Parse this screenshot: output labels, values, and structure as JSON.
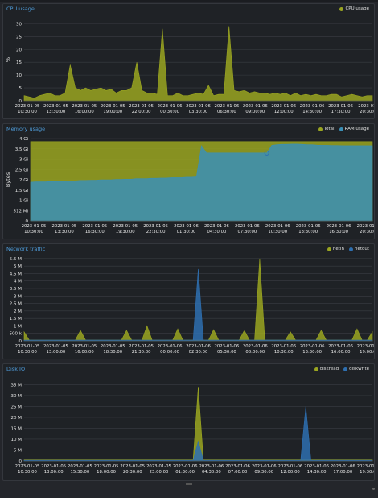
{
  "charts": [
    {
      "id": "cpu",
      "title": "CPU usage",
      "legend": [
        {
          "label": "CPU usage",
          "color": "#9aa521"
        }
      ],
      "ylabel": "%",
      "yticks": [
        "0",
        "5",
        "10",
        "15",
        "20",
        "25",
        "30"
      ],
      "xticks": [
        [
          "2023-01-05",
          "10:30:00"
        ],
        [
          "2023-01-05",
          "13:30:00"
        ],
        [
          "2023-01-05",
          "16:00:00"
        ],
        [
          "2023-01-05",
          "19:00:00"
        ],
        [
          "2023-01-05",
          "22:00:00"
        ],
        [
          "2023-01-06",
          "00:30:00"
        ],
        [
          "2023-01-06",
          "03:30:00"
        ],
        [
          "2023-01-06",
          "06:30:00"
        ],
        [
          "2023-01-06",
          "09:00:00"
        ],
        [
          "2023-01-06",
          "12:00:00"
        ],
        [
          "2023-01-06",
          "14:30:00"
        ],
        [
          "2023-01-06",
          "17:30:00"
        ],
        [
          "2023-01-0",
          "20:30:00"
        ]
      ]
    },
    {
      "id": "memory",
      "title": "Memory usage",
      "legend": [
        {
          "label": "Total",
          "color": "#9aa521"
        },
        {
          "label": "RAM usage",
          "color": "#3b8fb6"
        }
      ],
      "ylabel": "Bytes",
      "yticks": [
        "0",
        "512 Mi",
        "1 Gi",
        "1.5 Gi",
        "2 Gi",
        "2.5 Gi",
        "3 Gi",
        "3.5 Gi",
        "4 Gi"
      ],
      "xticks": [
        [
          "2023-01-05",
          "10:30:00"
        ],
        [
          "2023-01-05",
          "13:30:00"
        ],
        [
          "2023-01-05",
          "16:30:00"
        ],
        [
          "2023-01-05",
          "19:30:00"
        ],
        [
          "2023-01-05",
          "22:30:00"
        ],
        [
          "2023-01-06",
          "01:30:00"
        ],
        [
          "2023-01-06",
          "04:30:00"
        ],
        [
          "2023-01-06",
          "07:30:00"
        ],
        [
          "2023-01-06",
          "10:30:00"
        ],
        [
          "2023-01-06",
          "13:30:00"
        ],
        [
          "2023-01-06",
          "16:30:00"
        ],
        [
          "2023-01-06",
          "20:30:00"
        ]
      ]
    },
    {
      "id": "network",
      "title": "Network traffic",
      "legend": [
        {
          "label": "netin",
          "color": "#9aa521"
        },
        {
          "label": "netout",
          "color": "#2e6fb0"
        }
      ],
      "ylabel": "",
      "yticks": [
        "0",
        "500 k",
        "1 M",
        "1.5 M",
        "2 M",
        "2.5 M",
        "3 M",
        "3.5 M",
        "4 M",
        "4.5 M",
        "5 M",
        "5.5 M"
      ],
      "xticks": [
        [
          "2023-01-05",
          "10:30:00"
        ],
        [
          "2023-01-05",
          "13:00:00"
        ],
        [
          "2023-01-05",
          "16:00:00"
        ],
        [
          "2023-01-05",
          "18:30:00"
        ],
        [
          "2023-01-05",
          "21:30:00"
        ],
        [
          "2023-01-06",
          "00:00:00"
        ],
        [
          "2023-01-06",
          "02:30:00"
        ],
        [
          "2023-01-06",
          "05:30:00"
        ],
        [
          "2023-01-06",
          "08:00:00"
        ],
        [
          "2023-01-06",
          "10:30:00"
        ],
        [
          "2023-01-06",
          "13:30:00"
        ],
        [
          "2023-01-06",
          "16:00:00"
        ],
        [
          "2023-01-06",
          "19:00:00"
        ]
      ]
    },
    {
      "id": "disk",
      "title": "Disk IO",
      "legend": [
        {
          "label": "diskread",
          "color": "#9aa521"
        },
        {
          "label": "diskwrite",
          "color": "#2e6fb0"
        }
      ],
      "ylabel": "",
      "yticks": [
        "0",
        "5 M",
        "10 M",
        "15 M",
        "20 M",
        "25 M",
        "30 M",
        "35 M"
      ],
      "xticks": [
        [
          "2023-01-05",
          "10:30:00"
        ],
        [
          "2023-01-05",
          "13:00:00"
        ],
        [
          "2023-01-05",
          "15:30:00"
        ],
        [
          "2023-01-05",
          "18:00:00"
        ],
        [
          "2023-01-05",
          "20:30:00"
        ],
        [
          "2023-01-05",
          "23:00:00"
        ],
        [
          "2023-01-06",
          "01:30:00"
        ],
        [
          "2023-01-06",
          "04:30:00"
        ],
        [
          "2023-01-06",
          "07:00:00"
        ],
        [
          "2023-01-06",
          "09:30:00"
        ],
        [
          "2023-01-06",
          "12:00:00"
        ],
        [
          "2023-01-06",
          "14:30:00"
        ],
        [
          "2023-01-06",
          "17:00:00"
        ],
        [
          "2023-01-06",
          "19:30:00"
        ]
      ]
    }
  ],
  "chart_data": [
    {
      "type": "area",
      "title": "CPU usage",
      "ylabel": "%",
      "ylim": [
        0,
        32
      ],
      "grid": true,
      "legend_position": "top-right",
      "series": [
        {
          "name": "CPU usage",
          "color": "#9aa521",
          "values": [
            2,
            1.5,
            1,
            2,
            2.5,
            3,
            2,
            2,
            3,
            14,
            5,
            4,
            5,
            4,
            4.5,
            5,
            4,
            4.5,
            3,
            4,
            4,
            5,
            15,
            4,
            3,
            3,
            2.5,
            28,
            2,
            2,
            3,
            2,
            2,
            2.5,
            3,
            2.5,
            6,
            2,
            2.5,
            2.5,
            29,
            4,
            3.5,
            4,
            3,
            3.5,
            3,
            3,
            2.5,
            3,
            2.5,
            3,
            2,
            3,
            2,
            2.5,
            2,
            2.5,
            2,
            2,
            2.5,
            2.5,
            1.5,
            2,
            2.5,
            2,
            1.5,
            2,
            2
          ]
        }
      ]
    },
    {
      "type": "area",
      "title": "Memory usage",
      "ylabel": "Bytes",
      "ylim": [
        0,
        4
      ],
      "unit": "Gi",
      "grid": true,
      "legend_position": "top-right",
      "series": [
        {
          "name": "Total",
          "color": "#9aa521",
          "values": [
            3.85,
            3.85,
            3.85,
            3.85,
            3.85,
            3.85,
            3.85,
            3.85,
            3.85,
            3.85,
            3.85,
            3.85,
            3.85,
            3.85,
            3.85,
            3.85,
            3.85,
            3.85,
            3.85,
            3.85,
            3.85,
            3.85,
            3.85,
            3.85,
            3.85,
            3.85,
            3.85,
            3.85,
            3.85,
            3.85,
            3.85,
            3.85,
            3.85,
            3.85,
            3.85,
            3.85,
            3.85,
            3.85,
            3.85,
            3.85,
            3.85,
            3.85,
            3.85,
            3.85,
            3.85,
            3.85,
            3.85,
            3.85,
            3.85,
            3.85,
            3.85,
            3.85,
            3.85,
            3.85,
            3.85,
            3.85,
            3.85,
            3.85,
            3.85,
            3.85,
            3.85,
            3.85,
            3.85,
            3.85,
            3.85,
            3.85,
            3.85,
            3.85,
            3.85
          ]
        },
        {
          "name": "RAM usage",
          "color": "#3b8fb6",
          "values": [
            1.88,
            1.9,
            1.9,
            1.9,
            1.92,
            1.92,
            1.93,
            1.93,
            1.95,
            1.95,
            1.97,
            1.97,
            1.98,
            1.98,
            2.0,
            2.0,
            2.0,
            2.02,
            2.02,
            2.03,
            2.03,
            2.05,
            2.05,
            2.05,
            2.07,
            2.07,
            2.08,
            2.08,
            2.1,
            2.1,
            2.1,
            2.12,
            2.12,
            2.14,
            3.65,
            3.3,
            3.3,
            3.3,
            3.3,
            3.3,
            3.3,
            3.3,
            3.3,
            3.3,
            3.3,
            3.3,
            3.3,
            3.3,
            3.67,
            3.7,
            3.72,
            3.72,
            3.73,
            3.73,
            3.72,
            3.7,
            3.7,
            3.68,
            3.67,
            3.67,
            3.66,
            3.66,
            3.65,
            3.65,
            3.65,
            3.65,
            3.65,
            3.65,
            3.65
          ]
        }
      ]
    },
    {
      "type": "area",
      "title": "Network traffic",
      "ylim": [
        0,
        5.6
      ],
      "unit": "M",
      "grid": true,
      "legend_position": "top-right",
      "series": [
        {
          "name": "netin",
          "color": "#9aa521",
          "values": [
            0.6,
            0.05,
            0.05,
            0.05,
            0.05,
            0.05,
            0.05,
            0.05,
            0.05,
            0.05,
            0.05,
            0.7,
            0.05,
            0.05,
            0.05,
            0.05,
            0.05,
            0.05,
            0.05,
            0.05,
            0.7,
            0.05,
            0.05,
            0.05,
            1.0,
            0.05,
            0.05,
            0.05,
            0.05,
            0.05,
            0.8,
            0.05,
            0.05,
            0.05,
            0.05,
            0.05,
            0.05,
            0.75,
            0.05,
            0.05,
            0.05,
            0.05,
            0.05,
            0.7,
            0.05,
            0.05,
            5.5,
            0.05,
            0.05,
            0.05,
            0.05,
            0.05,
            0.6,
            0.05,
            0.05,
            0.05,
            0.05,
            0.05,
            0.7,
            0.05,
            0.05,
            0.05,
            0.05,
            0.05,
            0.05,
            0.8,
            0.05,
            0.05,
            0.6
          ]
        },
        {
          "name": "netout",
          "color": "#2e6fb0",
          "values": [
            0.05,
            0.05,
            0.05,
            0.05,
            0.05,
            0.05,
            0.05,
            0.05,
            0.05,
            0.05,
            0.05,
            0.05,
            0.05,
            0.05,
            0.05,
            0.05,
            0.05,
            0.05,
            0.05,
            0.05,
            0.05,
            0.05,
            0.05,
            0.05,
            0.05,
            0.05,
            0.05,
            0.05,
            0.05,
            0.05,
            0.05,
            0.05,
            0.05,
            0.05,
            4.8,
            0.05,
            0.05,
            0.05,
            0.05,
            0.05,
            0.05,
            0.05,
            0.05,
            0.05,
            0.05,
            0.05,
            0.05,
            0.05,
            0.05,
            0.05,
            0.05,
            0.05,
            0.05,
            0.05,
            0.05,
            0.05,
            0.05,
            0.05,
            0.05,
            0.05,
            0.05,
            0.05,
            0.05,
            0.05,
            0.05,
            0.05,
            0.05,
            0.05,
            0.05
          ]
        }
      ]
    },
    {
      "type": "area",
      "title": "Disk IO",
      "ylim": [
        0,
        37
      ],
      "unit": "M",
      "grid": true,
      "legend_position": "top-right",
      "series": [
        {
          "name": "diskread",
          "color": "#9aa521",
          "values": [
            0.5,
            0.5,
            0.5,
            0.5,
            0.5,
            0.5,
            0.5,
            0.5,
            0.5,
            0.5,
            0.5,
            0.5,
            0.5,
            0.5,
            0.5,
            0.5,
            0.5,
            0.5,
            0.5,
            0.5,
            0.5,
            0.5,
            0.5,
            0.5,
            0.5,
            0.5,
            0.5,
            0.5,
            0.5,
            0.5,
            0.5,
            0.5,
            0.5,
            0.5,
            34,
            0.5,
            0.5,
            0.5,
            0.5,
            0.5,
            0.5,
            0.5,
            0.5,
            0.5,
            0.5,
            0.5,
            0.5,
            0.5,
            0.5,
            0.5,
            0.5,
            0.5,
            0.5,
            0.5,
            0.5,
            0.5,
            0.5,
            0.5,
            0.5,
            0.5,
            0.5,
            0.5,
            0.5,
            0.5,
            0.5,
            0.5,
            0.5,
            0.5,
            0.5
          ]
        },
        {
          "name": "diskwrite",
          "color": "#2e6fb0",
          "values": [
            0.3,
            0.3,
            0.3,
            0.3,
            0.3,
            0.3,
            0.3,
            0.3,
            0.3,
            0.3,
            0.3,
            0.3,
            0.3,
            0.3,
            0.3,
            0.3,
            0.3,
            0.3,
            0.3,
            0.3,
            0.3,
            0.3,
            0.3,
            0.3,
            0.3,
            0.3,
            0.3,
            0.3,
            0.3,
            0.3,
            0.3,
            0.3,
            0.3,
            0.3,
            9,
            0.3,
            0.3,
            0.3,
            0.3,
            0.3,
            0.3,
            0.3,
            0.3,
            0.3,
            0.3,
            0.3,
            0.3,
            0.3,
            0.3,
            0.3,
            0.3,
            0.3,
            0.3,
            0.3,
            0.3,
            25,
            0.3,
            0.3,
            0.3,
            0.3,
            0.3,
            0.3,
            0.3,
            0.3,
            0.3,
            0.3,
            0.3,
            0.3,
            0.3
          ]
        }
      ]
    }
  ]
}
